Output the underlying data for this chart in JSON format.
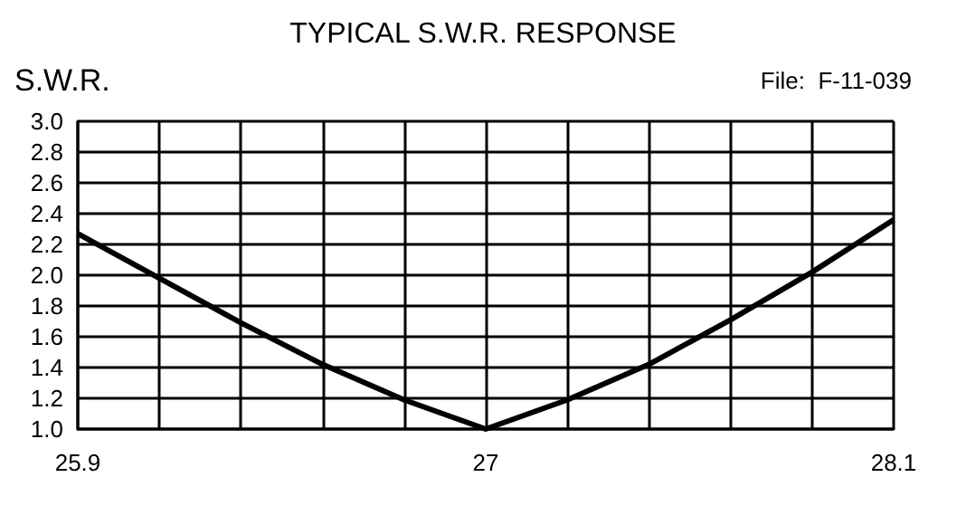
{
  "chart_data": {
    "type": "line",
    "title": "TYPICAL S.W.R. RESPONSE",
    "ylabel": "S.W.R.",
    "annotations": [
      "File:  F-11-039"
    ],
    "x": [
      25.9,
      26.12,
      26.34,
      26.56,
      26.78,
      27.0,
      27.22,
      27.44,
      27.66,
      27.88,
      28.1
    ],
    "series": [
      {
        "color": "#000000",
        "values": [
          2.27,
          1.98,
          1.69,
          1.42,
          1.19,
          1.0,
          1.19,
          1.42,
          1.71,
          2.02,
          2.36
        ]
      }
    ],
    "xlim": [
      25.9,
      28.1
    ],
    "xticks": [
      25.9,
      {
        "value": 26.12,
        "label": null
      },
      {
        "value": 26.34,
        "label": null
      },
      {
        "value": 26.56,
        "label": null
      },
      {
        "value": 26.78,
        "label": null
      },
      27,
      {
        "value": 27.22,
        "label": null
      },
      {
        "value": 27.44,
        "label": null
      },
      {
        "value": 27.66,
        "label": null
      },
      {
        "value": 27.88,
        "label": null
      },
      28.1
    ],
    "ylim": [
      1.0,
      3.0
    ],
    "yticks": [
      {
        "value": 1.0,
        "label": "1.0"
      },
      1.2,
      1.4,
      1.6,
      1.8,
      {
        "value": 2.0,
        "label": "2.0"
      },
      2.2,
      2.4,
      2.6,
      2.8,
      {
        "value": 3.0,
        "label": "3.0"
      }
    ],
    "grid": true,
    "marker": "none",
    "line_style": "solid"
  }
}
